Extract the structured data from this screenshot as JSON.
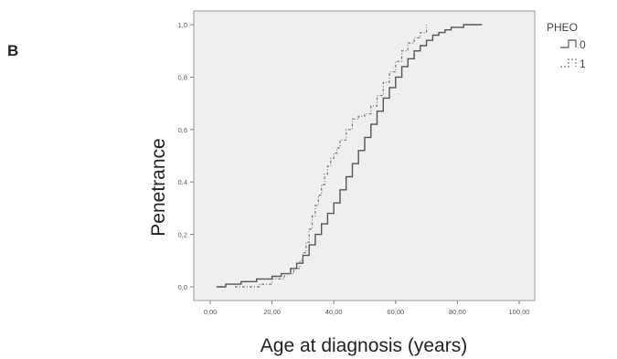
{
  "panel_label": "B",
  "chart_data": {
    "type": "line",
    "step": true,
    "xlabel": "Age at diagnosis (years)",
    "ylabel": "Penetrance",
    "xlim": [
      0,
      100
    ],
    "ylim": [
      0,
      1
    ],
    "x_ticks": [
      "0,00",
      "20,00",
      "40,00",
      "60,00",
      "80,00",
      "100,00"
    ],
    "x_tick_values": [
      0,
      20,
      40,
      60,
      80,
      100
    ],
    "y_ticks": [
      "0,0",
      "0,2",
      "0,4",
      "0,6",
      "0,8",
      "1,0"
    ],
    "y_tick_values": [
      0,
      0.2,
      0.4,
      0.6,
      0.8,
      1.0
    ],
    "grid": false,
    "legend": {
      "title": "PHEO",
      "position": "top-right"
    },
    "background_color": "#efefef",
    "series": [
      {
        "name": "0",
        "style": "solid",
        "color": "#555555",
        "x": [
          2,
          5,
          10,
          15,
          20,
          23,
          26,
          28,
          30,
          32,
          34,
          36,
          38,
          40,
          42,
          44,
          46,
          48,
          50,
          52,
          54,
          56,
          58,
          60,
          62,
          64,
          66,
          68,
          70,
          72,
          74,
          76,
          78,
          80,
          82,
          84,
          86,
          88
        ],
        "y": [
          0.0,
          0.01,
          0.02,
          0.03,
          0.04,
          0.05,
          0.07,
          0.09,
          0.12,
          0.16,
          0.2,
          0.24,
          0.28,
          0.32,
          0.37,
          0.42,
          0.47,
          0.52,
          0.57,
          0.62,
          0.67,
          0.72,
          0.76,
          0.8,
          0.84,
          0.87,
          0.9,
          0.92,
          0.94,
          0.96,
          0.97,
          0.98,
          0.99,
          0.99,
          1.0,
          1.0,
          1.0,
          1.0
        ]
      },
      {
        "name": "1",
        "style": "dashed",
        "color": "#777777",
        "x": [
          8,
          12,
          16,
          20,
          24,
          27,
          29,
          30,
          31,
          32,
          33,
          34,
          35,
          36,
          37,
          38,
          39,
          40,
          41,
          42,
          44,
          46,
          48,
          50,
          52,
          54,
          56,
          58,
          60,
          62,
          64,
          66,
          68,
          70
        ],
        "y": [
          0.0,
          0.0,
          0.01,
          0.03,
          0.05,
          0.07,
          0.1,
          0.13,
          0.17,
          0.22,
          0.27,
          0.31,
          0.35,
          0.39,
          0.43,
          0.46,
          0.49,
          0.51,
          0.53,
          0.56,
          0.6,
          0.64,
          0.65,
          0.66,
          0.69,
          0.73,
          0.78,
          0.82,
          0.86,
          0.9,
          0.93,
          0.95,
          0.97,
          1.0
        ]
      }
    ]
  }
}
